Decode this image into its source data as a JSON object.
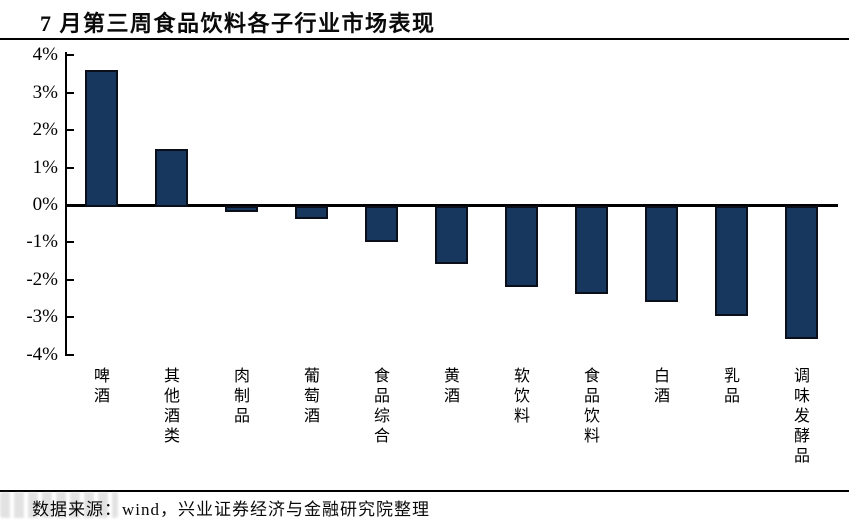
{
  "title": "7 月第三周食品饮料各子行业市场表现",
  "source": "数据来源：wind，兴业证券经济与金融研究院整理",
  "colors": {
    "bar_fill": "#17375E",
    "bar_border": "#0B0F1A",
    "axis": "#000000",
    "text": "#0A0A0A",
    "watermark_gray": "#9A9A9A"
  },
  "chart_data": {
    "type": "bar",
    "title": "7 月第三周食品饮料各子行业市场表现",
    "categories": [
      "啤酒",
      "其他酒类",
      "肉制品",
      "葡萄酒",
      "食品综合",
      "黄酒",
      "软饮料",
      "食品饮料",
      "白酒",
      "乳品",
      "调味发酵品"
    ],
    "values": [
      3.6,
      1.5,
      -0.1,
      -0.3,
      -0.9,
      -1.5,
      -2.1,
      -2.3,
      -2.5,
      -2.9,
      -3.5
    ],
    "unit": "%",
    "xlabel": "",
    "ylabel": "",
    "ylim": [
      -4,
      4
    ],
    "y_tick_labels": [
      "4%",
      "3%",
      "2%",
      "1%",
      "0%",
      "-1%",
      "-2%",
      "-3%",
      "-4%"
    ],
    "y_tick_values": [
      4,
      3,
      2,
      1,
      0,
      -1,
      -2,
      -3,
      -4
    ],
    "grid": false,
    "legend": false,
    "bar_orientation": "vertical",
    "category_label_orientation": "vertical"
  }
}
